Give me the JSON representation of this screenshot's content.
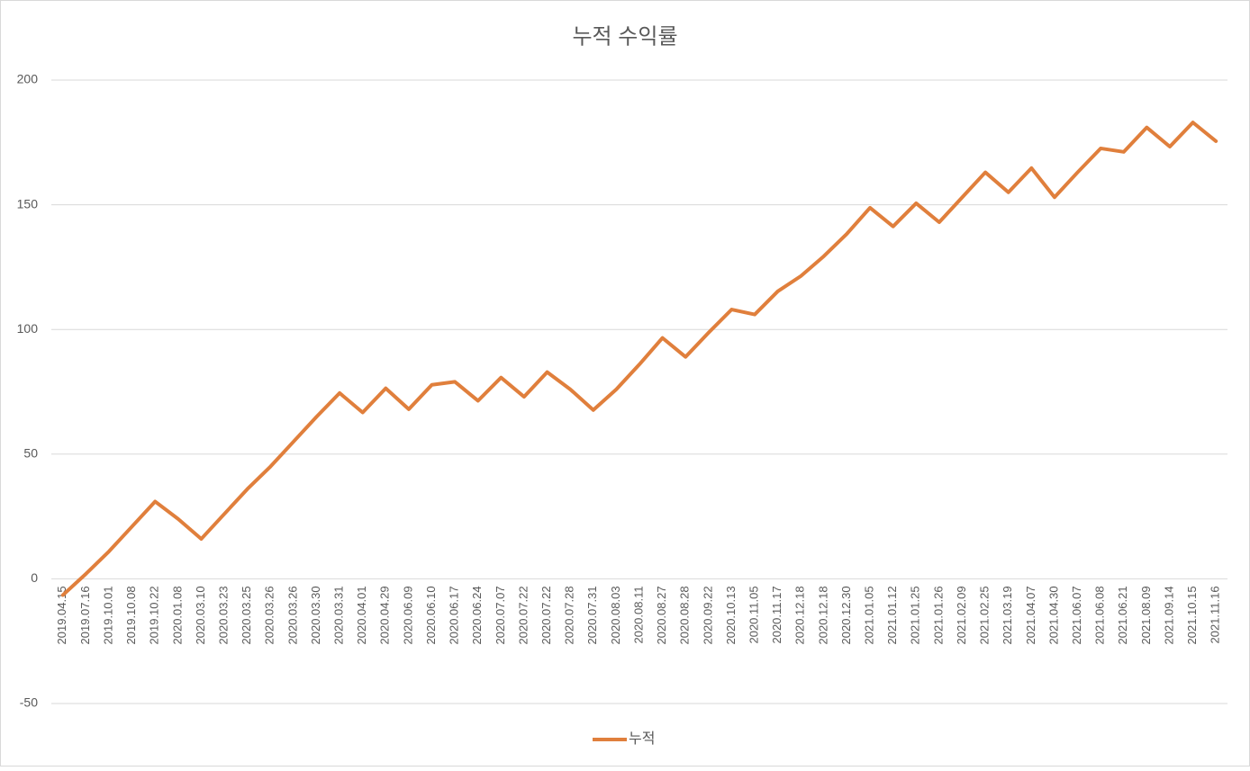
{
  "chart_data": {
    "type": "line",
    "title": "누적 수익률",
    "categories": [
      "2019.04.15",
      "2019.07.16",
      "2019.10.01",
      "2019.10.08",
      "2019.10.22",
      "2020.01.08",
      "2020.03.10",
      "2020.03.23",
      "2020.03.25",
      "2020.03.26",
      "2020.03.26",
      "2020.03.30",
      "2020.03.31",
      "2020.04.01",
      "2020.04.29",
      "2020.06.09",
      "2020.06.10",
      "2020.06.17",
      "2020.06.24",
      "2020.07.07",
      "2020.07.22",
      "2020.07.22",
      "2020.07.28",
      "2020.07.31",
      "2020.08.03",
      "2020.08.11",
      "2020.08.27",
      "2020.08.28",
      "2020.09.22",
      "2020.10.13",
      "2020.11.05",
      "2020.11.17",
      "2020.12.18",
      "2020.12.18",
      "2020.12.30",
      "2021.01.05",
      "2021.01.12",
      "2021.01.25",
      "2021.01.26",
      "2021.02.09",
      "2021.02.25",
      "2021.03.19",
      "2021.04.07",
      "2021.04.30",
      "2021.06.07",
      "2021.06.08",
      "2021.06.21",
      "2021.08.09",
      "2021.09.14",
      "2021.10.15",
      "2021.11.16"
    ],
    "series": [
      {
        "name": "누적",
        "color": "#e07f3c",
        "values": [
          -6.5,
          2,
          11,
          21,
          31,
          24,
          16,
          26,
          36,
          45,
          55,
          65,
          74.5,
          66.7,
          76.4,
          68,
          77.8,
          79,
          71.4,
          80.7,
          73,
          82.9,
          76,
          67.7,
          76,
          86,
          96.6,
          89,
          98.7,
          108,
          106,
          115.3,
          121.4,
          129.4,
          138.4,
          148.8,
          141.3,
          150.6,
          143,
          153,
          163,
          155,
          164.7,
          153,
          163,
          172.6,
          171.2,
          181,
          173.3,
          183,
          175.5
        ]
      }
    ],
    "ylim": [
      -50,
      200
    ],
    "yticks": [
      -50,
      0,
      50,
      100,
      150,
      200
    ],
    "grid": true,
    "legend": "bottom"
  }
}
